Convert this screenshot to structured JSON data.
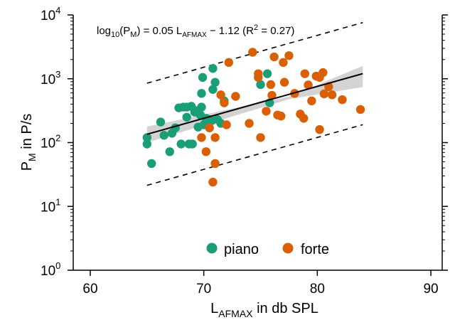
{
  "chart_data": {
    "type": "scatter",
    "x_axis": {
      "label": "L",
      "label_sub": "AFMAX",
      "label_suffix": " in db SPL",
      "range": [
        58.5,
        91
      ],
      "ticks": [
        60,
        70,
        80,
        90
      ],
      "tick_labels": [
        "60",
        "70",
        "80",
        "90"
      ]
    },
    "y_axis": {
      "label": "P",
      "label_sub": "M",
      "label_suffix": " in P/s",
      "scale": "log",
      "range": [
        1,
        10000
      ],
      "ticks": [
        1,
        10,
        100,
        1000,
        10000
      ],
      "tick_base": "10",
      "tick_exponents": [
        "0",
        "1",
        "2",
        "3",
        "4"
      ]
    },
    "annotation": {
      "log": "log",
      "log_sub": "10",
      "open": "(P",
      "p_sub": "M",
      "mid": ") = 0.05 L",
      "l_sub": "AFMAX",
      "tail": " − 1.12 (R",
      "r_sup": "2",
      "end": " = 0.27)"
    },
    "regression": {
      "slope": 0.05,
      "intercept": -1.12,
      "x_range": [
        65,
        84
      ]
    },
    "prediction_band": {
      "offset_log10": 0.8
    },
    "confidence_band": {
      "lower_log10": [
        2.0,
        2.68,
        2.87
      ],
      "upper_log10": [
        2.25,
        2.72,
        3.2
      ],
      "x": [
        65,
        77.5,
        84
      ]
    },
    "legend": {
      "position": "bottom-center",
      "items": [
        "piano",
        "forte"
      ]
    },
    "colors": {
      "piano": "#1a9e77",
      "forte": "#d95f02",
      "fit": "#000000",
      "band": "#d3d3d3"
    },
    "series": [
      {
        "name": "piano",
        "points": [
          [
            65.0,
            120
          ],
          [
            65.0,
            95
          ],
          [
            65.4,
            47
          ],
          [
            66.2,
            210
          ],
          [
            66.5,
            130
          ],
          [
            67.0,
            72
          ],
          [
            67.2,
            140
          ],
          [
            67.5,
            170
          ],
          [
            67.8,
            350
          ],
          [
            68.0,
            95
          ],
          [
            68.2,
            360
          ],
          [
            68.5,
            360
          ],
          [
            68.5,
            250
          ],
          [
            68.7,
            95
          ],
          [
            68.9,
            370
          ],
          [
            69.0,
            95
          ],
          [
            69.2,
            320
          ],
          [
            69.2,
            300
          ],
          [
            69.5,
            175
          ],
          [
            69.7,
            270
          ],
          [
            69.8,
            360
          ],
          [
            69.8,
            590
          ],
          [
            69.9,
            1050
          ],
          [
            70.0,
            190
          ],
          [
            70.2,
            240
          ],
          [
            70.5,
            230
          ],
          [
            70.7,
            220
          ],
          [
            70.8,
            680
          ],
          [
            70.8,
            1450
          ],
          [
            71.0,
            880
          ],
          [
            71.2,
            230
          ],
          [
            71.5,
            200
          ],
          [
            71.8,
            450
          ],
          [
            75.0,
            810
          ],
          [
            75.6,
            1200
          ],
          [
            75.8,
            420
          ]
        ]
      },
      {
        "name": "forte",
        "points": [
          [
            69.8,
            120
          ],
          [
            70.2,
            72
          ],
          [
            70.5,
            170
          ],
          [
            70.8,
            24
          ],
          [
            71.0,
            47
          ],
          [
            71.0,
            120
          ],
          [
            71.5,
            560
          ],
          [
            71.8,
            420
          ],
          [
            72.0,
            190
          ],
          [
            72.2,
            1800
          ],
          [
            72.8,
            530
          ],
          [
            74.0,
            200
          ],
          [
            74.3,
            2600
          ],
          [
            74.8,
            1050
          ],
          [
            74.8,
            1200
          ],
          [
            75.0,
            120
          ],
          [
            75.5,
            310
          ],
          [
            75.9,
            810
          ],
          [
            76.0,
            550
          ],
          [
            76.2,
            2200
          ],
          [
            76.5,
            270
          ],
          [
            76.8,
            260
          ],
          [
            77.0,
            1800
          ],
          [
            77.1,
            880
          ],
          [
            77.5,
            2300
          ],
          [
            78.0,
            590
          ],
          [
            78.5,
            280
          ],
          [
            78.8,
            240
          ],
          [
            78.9,
            1200
          ],
          [
            79.2,
            800
          ],
          [
            79.5,
            450
          ],
          [
            79.9,
            1100
          ],
          [
            80.2,
            1050
          ],
          [
            80.2,
            160
          ],
          [
            80.5,
            1250
          ],
          [
            80.6,
            580
          ],
          [
            81.0,
            750
          ],
          [
            81.3,
            560
          ],
          [
            82.2,
            470
          ],
          [
            83.8,
            330
          ]
        ]
      }
    ]
  }
}
